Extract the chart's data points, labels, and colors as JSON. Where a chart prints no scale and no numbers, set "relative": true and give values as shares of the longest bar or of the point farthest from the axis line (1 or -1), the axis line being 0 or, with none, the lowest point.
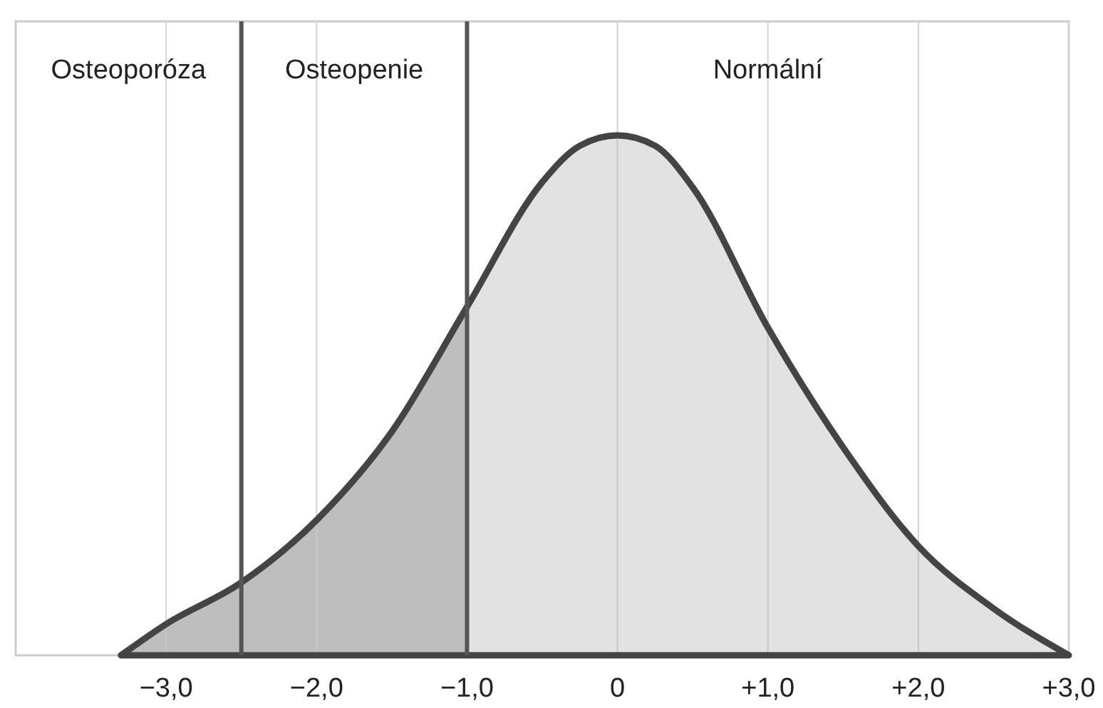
{
  "chart_data": {
    "type": "area",
    "relative": true,
    "x": [
      -3.3,
      -3,
      -2.5,
      -2,
      -1.5,
      -1,
      -0.5,
      -0.25,
      0,
      0.25,
      0.5,
      1,
      1.5,
      2,
      2.5,
      3
    ],
    "series": [
      {
        "color": "#444444",
        "values": [
          0,
          0.06,
          0.14,
          0.26,
          0.43,
          0.67,
          0.91,
          0.98,
          1,
          0.98,
          0.9,
          0.63,
          0.4,
          0.21,
          0.09,
          0
        ]
      }
    ],
    "xlim": [
      -4,
      3
    ],
    "xticks": [
      {
        "value": -3,
        "label": "−3,0"
      },
      {
        "value": -2,
        "label": "−2,0"
      },
      {
        "value": -1,
        "label": "−1,0"
      },
      0,
      {
        "value": 1,
        "label": "+1,0"
      },
      {
        "value": 2,
        "label": "+2,0"
      },
      {
        "value": 3,
        "label": "+3,0"
      }
    ],
    "grid": "x",
    "ref_lines": [
      {
        "axis": "x",
        "value": -2.5,
        "color": "#555555"
      },
      {
        "axis": "x",
        "value": -1,
        "color": "#555555"
      }
    ],
    "bands": [
      {
        "axis": "x",
        "from": -4,
        "to": -2.5,
        "label": "Osteoporóza",
        "color": "#c6c6c6"
      },
      {
        "axis": "x",
        "from": -2.5,
        "to": -1,
        "label": "Osteopenie",
        "color": "#c6c6c6"
      },
      {
        "axis": "x",
        "from": -1,
        "to": 3,
        "label": "Normální",
        "color": "#ebebeb"
      }
    ]
  }
}
